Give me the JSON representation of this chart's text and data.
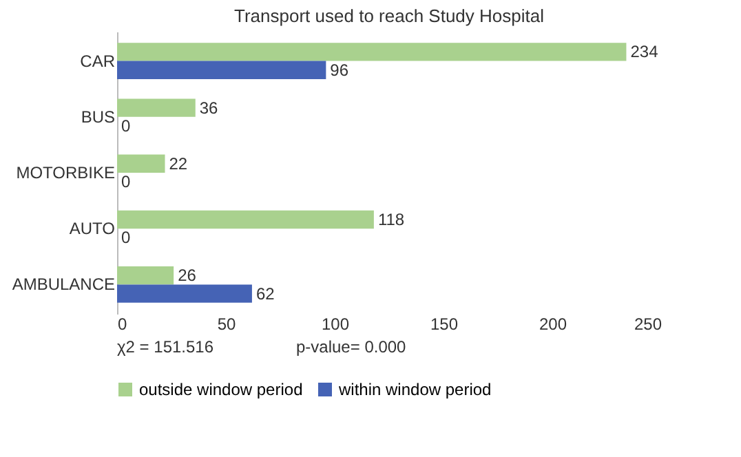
{
  "chart_data": {
    "type": "bar",
    "orientation": "horizontal",
    "title": "Transport used to reach Study Hospital",
    "categories": [
      "CAR",
      "BUS",
      "MOTORBIKE",
      "AUTO",
      "AMBULANCE"
    ],
    "series": [
      {
        "name": "outside window period",
        "color": "#a9d18e",
        "values": [
          234,
          36,
          22,
          118,
          26
        ]
      },
      {
        "name": "within window period",
        "color": "#4563b5",
        "values": [
          96,
          0,
          0,
          0,
          62
        ]
      }
    ],
    "xlim": [
      0,
      250
    ],
    "xticks": [
      0,
      50,
      100,
      150,
      200,
      250
    ],
    "data_labels": true,
    "grid": false,
    "legend": "bottom",
    "annotations": [
      "χ2 = 151.516",
      "p-value= 0.000"
    ]
  }
}
